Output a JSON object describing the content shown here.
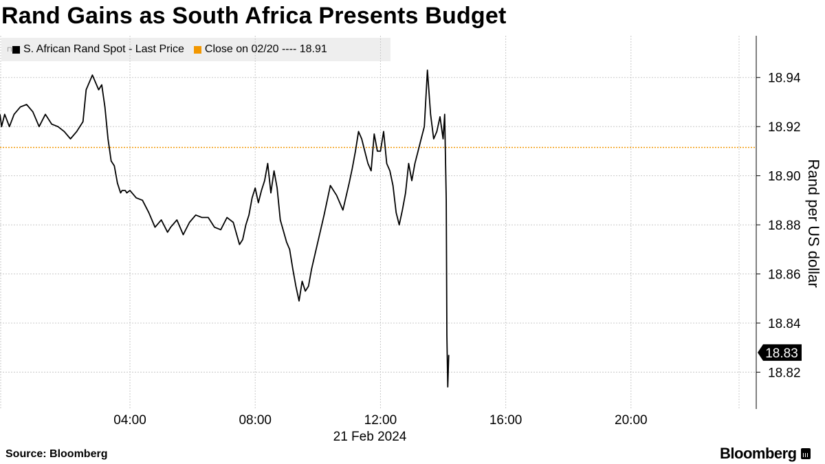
{
  "title": "Rand Gains as South Africa Presents Budget",
  "legend": {
    "series_label": "S. African Rand Spot - Last Price",
    "close_label": "Close on 02/20 ---- 18.91"
  },
  "source": "Source: Bloomberg",
  "brand": "Bloomberg",
  "colors": {
    "series": "#000000",
    "close_line": "#f29700",
    "grid": "#c8c8c8"
  },
  "chart_data": {
    "type": "line",
    "xlabel": "21 Feb 2024",
    "ylabel": "Rand per US dollar",
    "x_ticks": [
      {
        "t": 4,
        "label": "04:00"
      },
      {
        "t": 8,
        "label": "08:00"
      },
      {
        "t": 12,
        "label": "12:00"
      },
      {
        "t": 16,
        "label": "16:00"
      },
      {
        "t": 20,
        "label": "20:00"
      }
    ],
    "x_range": [
      -0.15,
      24.0
    ],
    "y_ticks": [
      18.82,
      18.84,
      18.86,
      18.88,
      18.9,
      18.92,
      18.94
    ],
    "ylim": [
      18.805,
      18.957
    ],
    "reference_line": {
      "name": "Close on 02/20",
      "value": 18.9115
    },
    "last_value_label": "18.83",
    "last_value": 18.828,
    "series": [
      {
        "name": "S. African Rand Spot - Last Price",
        "x": [
          -0.15,
          -0.1,
          0.0,
          0.15,
          0.3,
          0.5,
          0.7,
          0.9,
          1.1,
          1.3,
          1.5,
          1.7,
          1.9,
          2.1,
          2.3,
          2.5,
          2.6,
          2.8,
          3.0,
          3.1,
          3.2,
          3.3,
          3.4,
          3.5,
          3.6,
          3.7,
          3.75,
          3.8,
          3.85,
          3.9,
          4.0,
          4.2,
          4.4,
          4.6,
          4.8,
          5.0,
          5.2,
          5.3,
          5.5,
          5.7,
          5.9,
          6.1,
          6.3,
          6.5,
          6.7,
          6.9,
          7.1,
          7.3,
          7.5,
          7.6,
          7.7,
          7.8,
          7.9,
          8.0,
          8.1,
          8.2,
          8.3,
          8.4,
          8.5,
          8.6,
          8.7,
          8.8,
          9.0,
          9.1,
          9.2,
          9.3,
          9.4,
          9.5,
          9.6,
          9.7,
          9.8,
          10.0,
          10.2,
          10.4,
          10.6,
          10.8,
          11.0,
          11.1,
          11.2,
          11.3,
          11.4,
          11.5,
          11.6,
          11.7,
          11.8,
          11.9,
          12.0,
          12.1,
          12.2,
          12.3,
          12.4,
          12.5,
          12.6,
          12.7,
          12.8,
          12.9,
          13.0,
          13.1,
          13.2,
          13.3,
          13.4,
          13.5,
          13.6,
          13.7,
          13.8,
          13.9,
          14.0,
          14.05,
          14.1,
          14.12,
          14.15,
          14.18
        ],
        "values": [
          18.925,
          18.92,
          18.925,
          18.92,
          18.925,
          18.928,
          18.929,
          18.926,
          18.92,
          18.925,
          18.921,
          18.92,
          18.918,
          18.915,
          18.918,
          18.922,
          18.935,
          18.941,
          18.935,
          18.937,
          18.928,
          18.915,
          18.906,
          18.904,
          18.897,
          18.893,
          18.894,
          18.894,
          18.894,
          18.893,
          18.894,
          18.891,
          18.89,
          18.885,
          18.879,
          18.882,
          18.877,
          18.879,
          18.882,
          18.876,
          18.881,
          18.884,
          18.883,
          18.883,
          18.879,
          18.878,
          18.883,
          18.881,
          18.872,
          18.874,
          18.88,
          18.884,
          18.891,
          18.895,
          18.889,
          18.894,
          18.898,
          18.905,
          18.893,
          18.902,
          18.895,
          18.882,
          18.873,
          18.87,
          18.862,
          18.855,
          18.849,
          18.857,
          18.853,
          18.855,
          18.862,
          18.873,
          18.884,
          18.896,
          18.892,
          18.886,
          18.897,
          18.903,
          18.91,
          18.918,
          18.915,
          18.91,
          18.905,
          18.902,
          18.917,
          18.91,
          18.91,
          18.918,
          18.905,
          18.902,
          18.896,
          18.885,
          18.88,
          18.886,
          18.893,
          18.905,
          18.898,
          18.905,
          18.91,
          18.915,
          18.92,
          18.943,
          18.925,
          18.915,
          18.918,
          18.924,
          18.915,
          18.925,
          18.89,
          18.835,
          18.814,
          18.827
        ]
      }
    ]
  }
}
